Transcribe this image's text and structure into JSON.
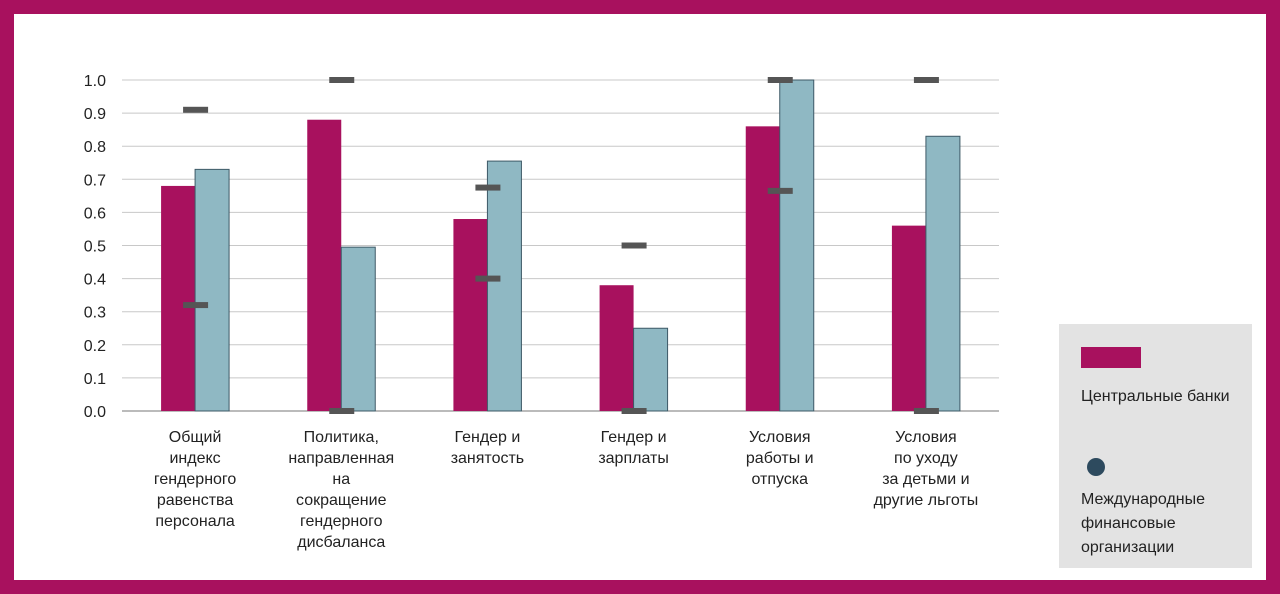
{
  "chart_data": {
    "type": "bar",
    "categories": [
      [
        "Общий",
        "индекс",
        "гендерного",
        "равенства",
        "персонала"
      ],
      [
        "Политика,",
        "направленная",
        "на",
        "сокращение",
        "гендерного",
        "дисбаланса"
      ],
      [
        "Гендер и",
        "занятость"
      ],
      [
        "Гендер и",
        "зарплаты"
      ],
      [
        "Условия",
        "работы и",
        "отпуска"
      ],
      [
        "Условия",
        "по уходу",
        "за детьми и",
        "другие льготы"
      ]
    ],
    "series": [
      {
        "name": "Центральные банки",
        "color": "#a8115e",
        "values": [
          0.68,
          0.88,
          0.58,
          0.38,
          0.86,
          0.56
        ]
      },
      {
        "name": "Международные финансовые организации",
        "color": "#8fb8c3",
        "values": [
          0.73,
          0.495,
          0.755,
          0.25,
          1.0,
          0.83
        ]
      }
    ],
    "range_markers": [
      {
        "min": 0.32,
        "max": 0.91
      },
      {
        "min": 0.0,
        "max": 1.0
      },
      {
        "min": 0.4,
        "max": 0.675
      },
      {
        "min": 0.0,
        "max": 0.5
      },
      {
        "min": 0.665,
        "max": 1.0
      },
      {
        "min": 0.0,
        "max": 1.0
      }
    ],
    "ylim": [
      0,
      1.0
    ],
    "yticks": [
      "0.0",
      "0.1",
      "0.2",
      "0.3",
      "0.4",
      "0.5",
      "0.6",
      "0.7",
      "0.8",
      "0.9",
      "1.0"
    ],
    "grid": true,
    "legend_placement": "bottom-right"
  },
  "legend": {
    "item1_label": "Центральные банки",
    "item2_label": "Международные финансовые организации"
  }
}
